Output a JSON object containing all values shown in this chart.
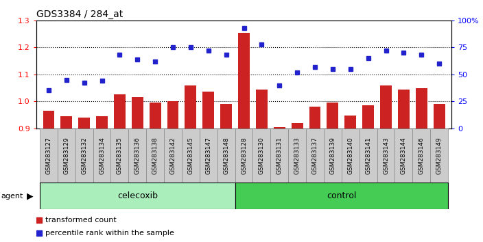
{
  "title": "GDS3384 / 284_at",
  "samples": [
    "GSM283127",
    "GSM283129",
    "GSM283132",
    "GSM283134",
    "GSM283135",
    "GSM283136",
    "GSM283138",
    "GSM283142",
    "GSM283145",
    "GSM283147",
    "GSM283148",
    "GSM283128",
    "GSM283130",
    "GSM283131",
    "GSM283133",
    "GSM283137",
    "GSM283139",
    "GSM283140",
    "GSM283141",
    "GSM283143",
    "GSM283144",
    "GSM283146",
    "GSM283149"
  ],
  "transformed_count": [
    0.965,
    0.945,
    0.94,
    0.945,
    1.025,
    1.015,
    0.995,
    1.0,
    1.06,
    1.035,
    0.99,
    1.255,
    1.045,
    0.905,
    0.92,
    0.98,
    0.995,
    0.948,
    0.985,
    1.06,
    1.045,
    1.05,
    0.99
  ],
  "percentile_rank": [
    35,
    45,
    42,
    44,
    68,
    64,
    62,
    75,
    75,
    72,
    68,
    93,
    78,
    40,
    52,
    57,
    55,
    55,
    65,
    72,
    70,
    68,
    60
  ],
  "celecoxib_count": 11,
  "control_count": 12,
  "ylim_left": [
    0.9,
    1.3
  ],
  "ylim_right": [
    0,
    100
  ],
  "yticks_left": [
    0.9,
    1.0,
    1.1,
    1.2,
    1.3
  ],
  "yticks_right": [
    0,
    25,
    50,
    75,
    100
  ],
  "ytick_labels_right": [
    "0",
    "25",
    "50",
    "75",
    "100%"
  ],
  "bar_color": "#cc2222",
  "dot_color": "#2222cc",
  "celecoxib_color": "#aaeebb",
  "control_color": "#44cc55",
  "grid_lines": [
    1.0,
    1.1,
    1.2
  ],
  "agent_label": "agent",
  "celecoxib_label": "celecoxib",
  "control_label": "control",
  "legend_bar_label": "transformed count",
  "legend_dot_label": "percentile rank within the sample",
  "tick_box_color": "#cccccc",
  "plot_bg": "#ffffff",
  "title_fontsize": 10,
  "tick_fontsize": 6.5,
  "axis_fontsize": 8
}
